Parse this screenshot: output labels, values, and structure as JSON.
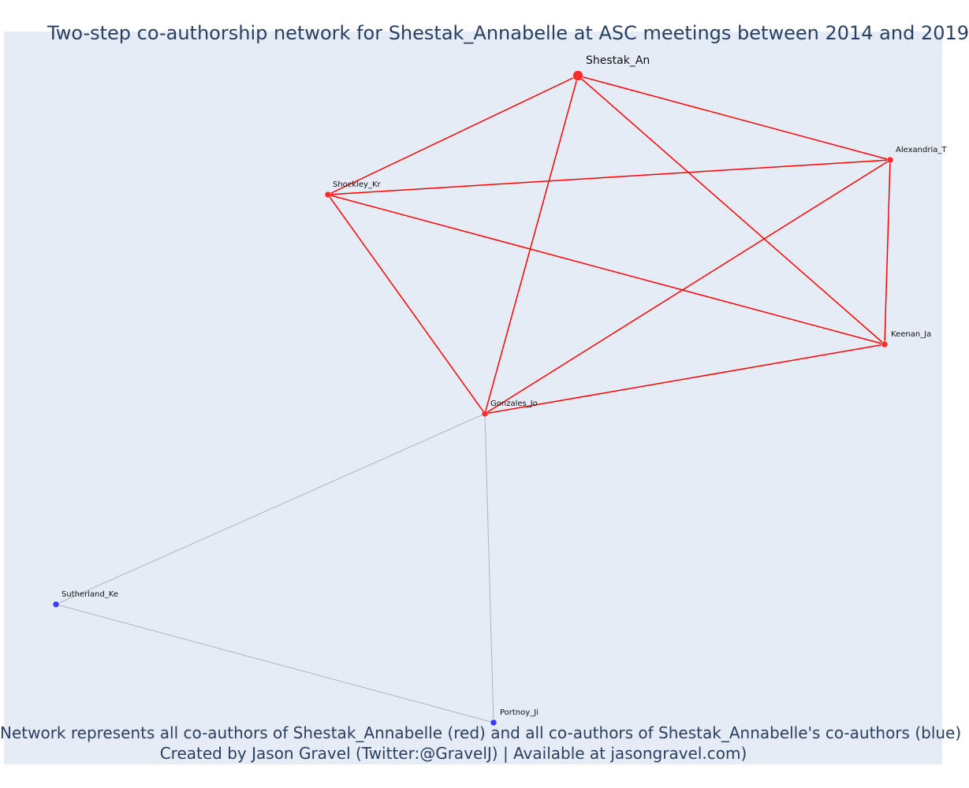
{
  "title": "Two-step co-authorship network for Shestak_Annabelle at ASC meetings between 2014 and 2019",
  "footer": {
    "line1": "Network represents all co-authors of Shestak_Annabelle (red) and all co-authors of Shestak_Annabelle's co-authors (blue)",
    "line2": "Created by Jason Gravel (Twitter:@GravelJ) | Available at jasongravel.com)"
  },
  "colors": {
    "background": "#e5ecf6",
    "red_node": "#ff2a2a",
    "red_edge": "#ff0000",
    "blue_node": "#3b3bff",
    "blue_edge": "#b0b4c0",
    "text": "#2a3f5f"
  },
  "nodes": [
    {
      "id": "Shestak_An",
      "label": "Shestak_An",
      "group": "ego"
    },
    {
      "id": "Alexandria_T",
      "label": "Alexandria_T",
      "group": "red"
    },
    {
      "id": "Shockley_Kr",
      "label": "Shockley_Kr",
      "group": "red"
    },
    {
      "id": "Keenan_Ja",
      "label": "Keenan_Ja",
      "group": "red"
    },
    {
      "id": "Gonzales_Jo",
      "label": "Gonzales_Jo",
      "group": "red"
    },
    {
      "id": "Sutherland_Ke",
      "label": "Sutherland_Ke",
      "group": "blue"
    },
    {
      "id": "Portnoy_Ji",
      "label": "Portnoy_Ji",
      "group": "blue"
    }
  ],
  "edges": [
    {
      "source": "Shestak_An",
      "target": "Alexandria_T",
      "type": "red"
    },
    {
      "source": "Shestak_An",
      "target": "Shockley_Kr",
      "type": "red"
    },
    {
      "source": "Shestak_An",
      "target": "Keenan_Ja",
      "type": "red"
    },
    {
      "source": "Shestak_An",
      "target": "Gonzales_Jo",
      "type": "red"
    },
    {
      "source": "Shockley_Kr",
      "target": "Alexandria_T",
      "type": "red"
    },
    {
      "source": "Shockley_Kr",
      "target": "Keenan_Ja",
      "type": "red"
    },
    {
      "source": "Shockley_Kr",
      "target": "Gonzales_Jo",
      "type": "red"
    },
    {
      "source": "Alexandria_T",
      "target": "Keenan_Ja",
      "type": "red"
    },
    {
      "source": "Alexandria_T",
      "target": "Gonzales_Jo",
      "type": "red"
    },
    {
      "source": "Keenan_Ja",
      "target": "Gonzales_Jo",
      "type": "red"
    },
    {
      "source": "Gonzales_Jo",
      "target": "Sutherland_Ke",
      "type": "blue"
    },
    {
      "source": "Gonzales_Jo",
      "target": "Portnoy_Ji",
      "type": "blue"
    },
    {
      "source": "Sutherland_Ke",
      "target": "Portnoy_Ji",
      "type": "blue"
    }
  ]
}
